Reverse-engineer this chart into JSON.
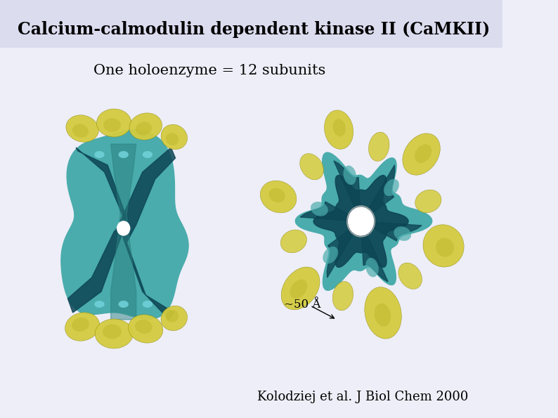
{
  "title": "Calcium-calmodulin dependent kinase II (CaMKII)",
  "subtitle": "One holoenzyme = 12 subunits",
  "annotation": "~50 Å",
  "citation": "Kolodziej et al. J Biol Chem 2000",
  "bg_color": "#eeeef8",
  "header_bg": "#dcdcef",
  "title_fontsize": 17,
  "subtitle_fontsize": 15,
  "annotation_fontsize": 12,
  "citation_fontsize": 13,
  "teal_light": "#4aacac",
  "teal_mid": "#2a8080",
  "teal_dark": "#0d4555",
  "yellow_light": "#d4cc40",
  "yellow_mid": "#b8b020",
  "yellow_dark": "#888000",
  "black": "#000000",
  "white": "#ffffff"
}
